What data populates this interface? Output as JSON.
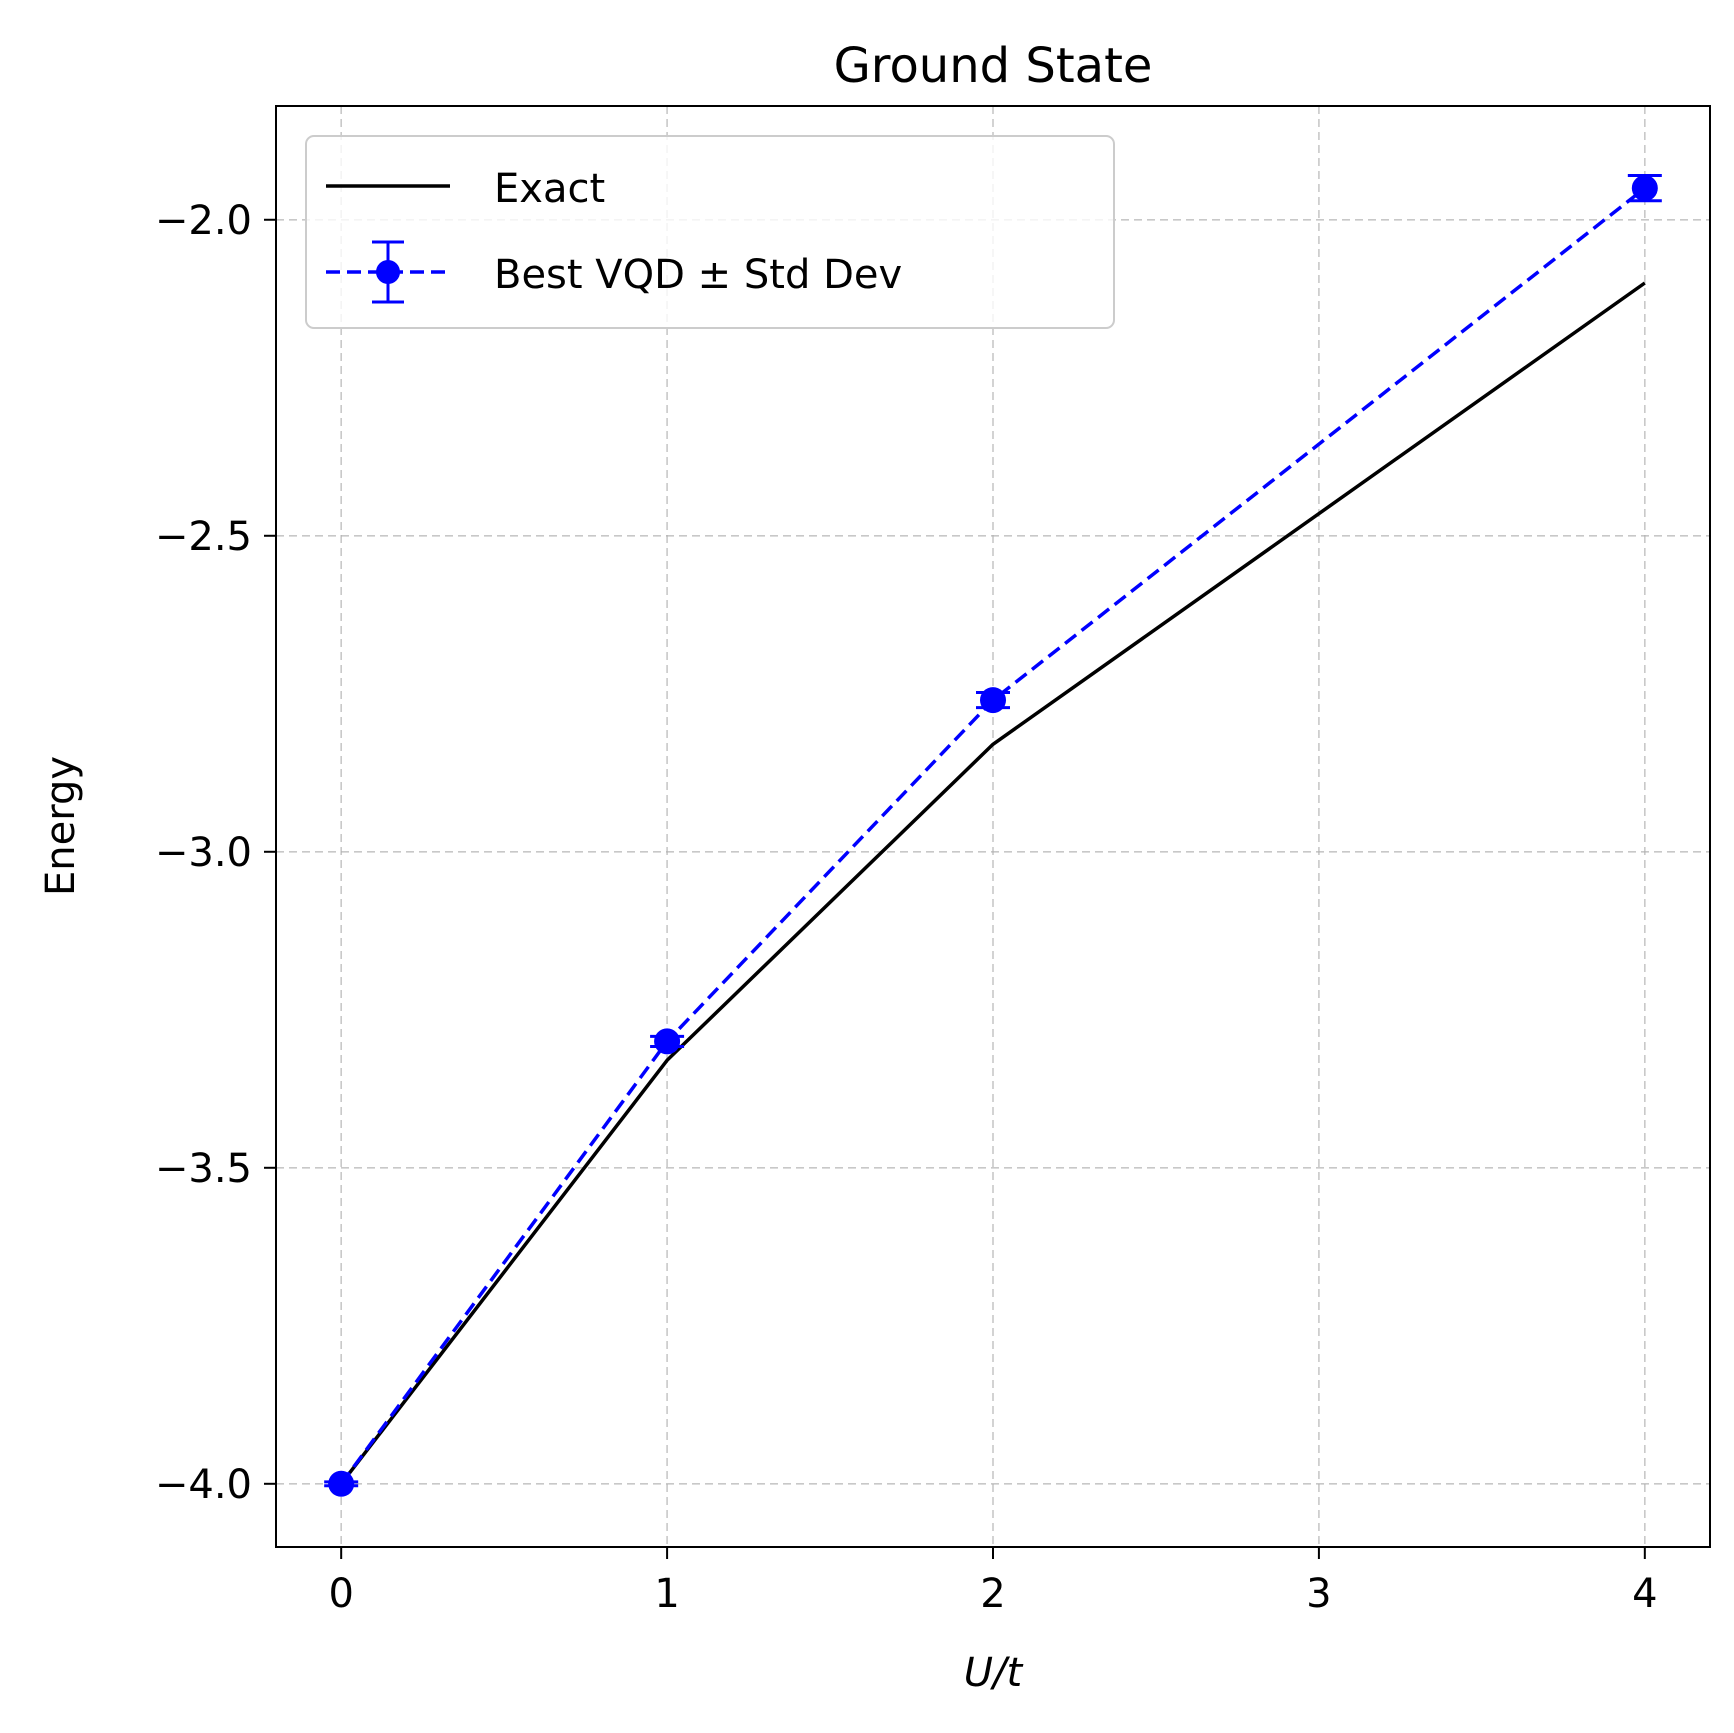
{
  "chart_data": {
    "type": "line",
    "title": "Ground State",
    "xlabel": "U/t",
    "ylabel": "Energy",
    "xlim": [
      -0.2,
      4.2
    ],
    "ylim": [
      -4.1,
      -1.82
    ],
    "x_ticks": [
      0,
      1,
      2,
      3,
      4
    ],
    "x_tick_labels": [
      "0",
      "1",
      "2",
      "3",
      "4"
    ],
    "y_ticks": [
      -4.0,
      -3.5,
      -3.0,
      -2.5,
      -2.0
    ],
    "y_tick_labels": [
      "−4.0",
      "−3.5",
      "−3.0",
      "−2.5",
      "−2.0"
    ],
    "grid": true,
    "legend_position": "upper-left",
    "series": [
      {
        "name": "Exact",
        "style": "solid",
        "color": "#000000",
        "x": [
          0,
          1,
          2,
          4
        ],
        "values": [
          -4.0,
          -3.33,
          -2.83,
          -2.1
        ]
      },
      {
        "name": "Best VQD ± Std Dev",
        "style": "dashed-markers-errorbars",
        "color": "#0000ff",
        "x": [
          0,
          1,
          2,
          4
        ],
        "values": [
          -4.0,
          -3.3,
          -2.76,
          -1.95
        ],
        "errors": [
          0.003,
          0.008,
          0.012,
          0.02
        ]
      }
    ]
  }
}
